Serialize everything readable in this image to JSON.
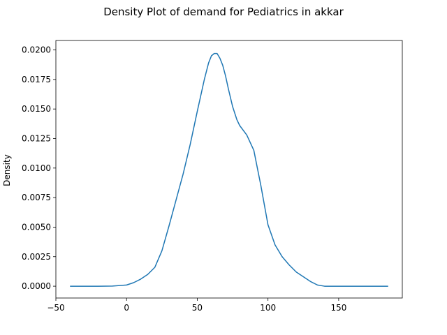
{
  "chart_data": {
    "type": "line",
    "title": "Density Plot of demand for Pediatrics in akkar",
    "xlabel": "",
    "ylabel": "Density",
    "xlim": [
      -50,
      195
    ],
    "ylim": [
      -0.001,
      0.0208
    ],
    "xticks": [
      -50,
      0,
      50,
      100,
      150
    ],
    "xtick_labels": [
      "−50",
      "0",
      "50",
      "100",
      "150"
    ],
    "yticks": [
      0.0,
      0.0025,
      0.005,
      0.0075,
      0.01,
      0.0125,
      0.015,
      0.0175,
      0.02
    ],
    "ytick_labels": [
      "0.0000",
      "0.0025",
      "0.0050",
      "0.0075",
      "0.0100",
      "0.0125",
      "0.0150",
      "0.0175",
      "0.0200"
    ],
    "grid": false,
    "series": [
      {
        "color": "#1f77b4",
        "x": [
          -40,
          -30,
          -20,
          -10,
          0,
          5,
          10,
          15,
          20,
          25,
          30,
          35,
          40,
          45,
          50,
          55,
          58,
          60,
          62,
          64,
          66,
          68,
          70,
          72,
          75,
          78,
          80,
          85,
          90,
          95,
          100,
          105,
          110,
          115,
          120,
          125,
          130,
          135,
          140,
          150,
          160,
          170,
          185
        ],
        "y": [
          0.0,
          0.0,
          0.0,
          1e-05,
          0.0001,
          0.0003,
          0.0006,
          0.001,
          0.0016,
          0.003,
          0.0051,
          0.0073,
          0.0095,
          0.012,
          0.0148,
          0.0175,
          0.0189,
          0.0195,
          0.0197,
          0.0197,
          0.0193,
          0.0187,
          0.0178,
          0.0167,
          0.0152,
          0.0141,
          0.0136,
          0.0128,
          0.0115,
          0.0085,
          0.0052,
          0.0035,
          0.0025,
          0.0018,
          0.0012,
          0.0008,
          0.0004,
          0.0001,
          0.0,
          0.0,
          0.0,
          0.0,
          0.0
        ]
      }
    ]
  }
}
